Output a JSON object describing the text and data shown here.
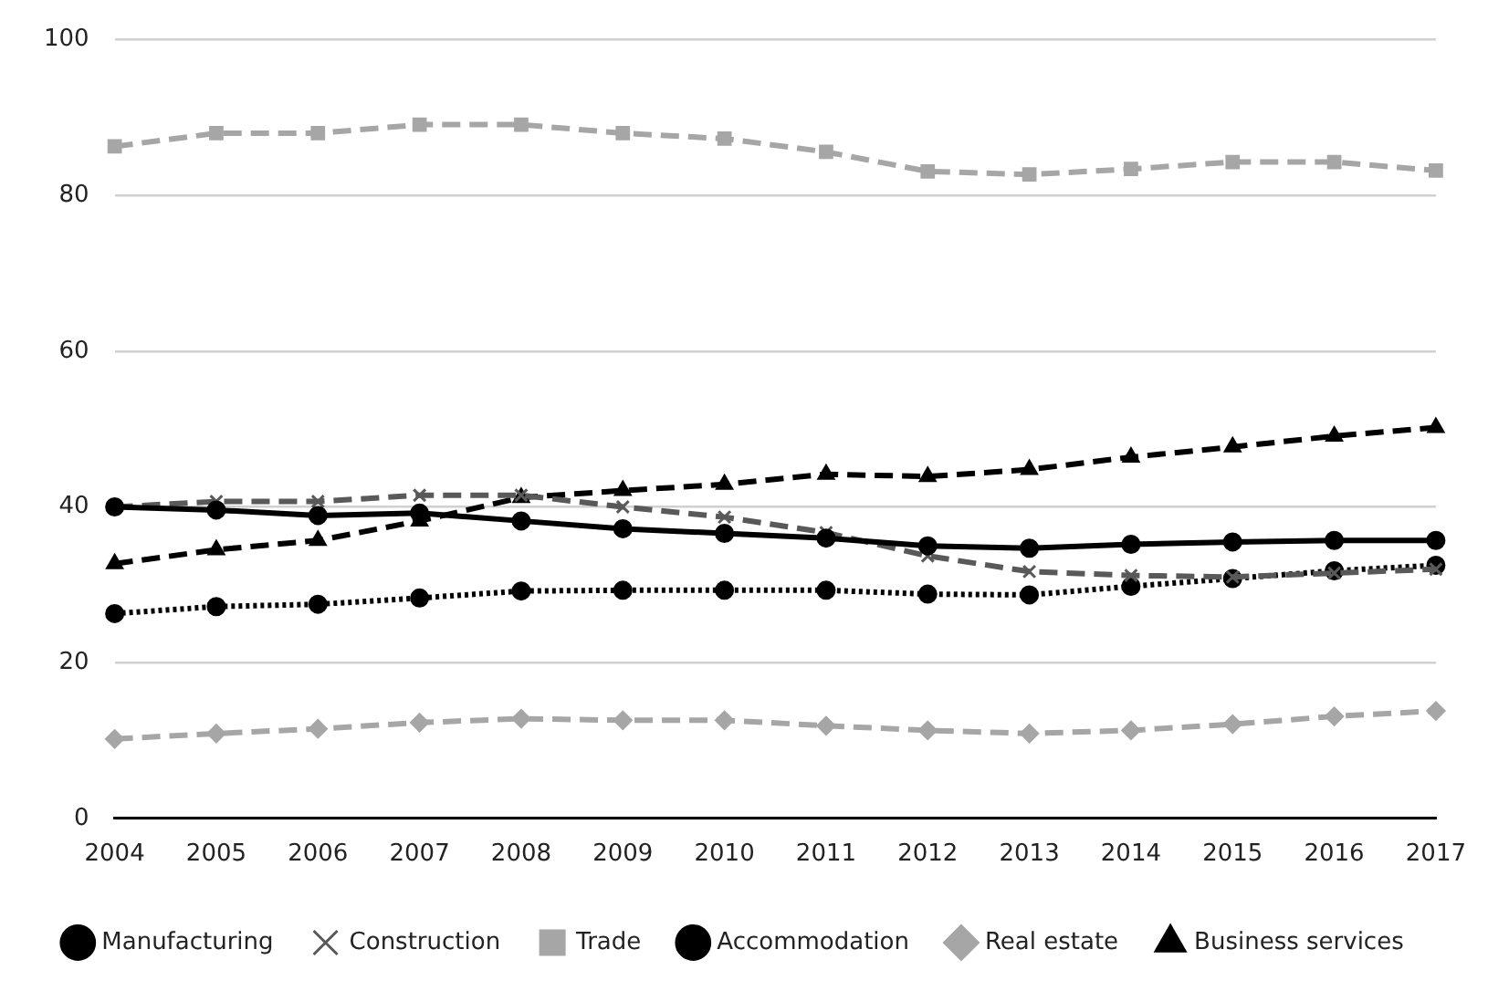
{
  "chart_data": {
    "type": "line",
    "categories": [
      "2004",
      "2005",
      "2006",
      "2007",
      "2008",
      "2009",
      "2010",
      "2011",
      "2012",
      "2013",
      "2014",
      "2015",
      "2016",
      "2017"
    ],
    "series": [
      {
        "name": "Manufacturing",
        "color": "#000000",
        "marker": "circle",
        "line_style": "solid",
        "values": [
          40,
          39.6,
          38.9,
          39.2,
          38.2,
          37.2,
          36.6,
          36.0,
          35.0,
          34.7,
          35.2,
          35.5,
          35.7,
          35.7
        ]
      },
      {
        "name": "Construction",
        "color": "#595959",
        "marker": "cross",
        "line_style": "dashed",
        "values": [
          40,
          40.7,
          40.7,
          41.5,
          41.5,
          40,
          38.7,
          36.7,
          33.7,
          31.7,
          31.2,
          31.0,
          31.5,
          32.0
        ]
      },
      {
        "name": "Trade",
        "color": "#a6a6a6",
        "marker": "square",
        "line_style": "dashed",
        "values": [
          86.3,
          88.0,
          88.0,
          89.1,
          89.1,
          88.0,
          87.3,
          85.6,
          83.1,
          82.7,
          83.4,
          84.3,
          84.3,
          83.2
        ]
      },
      {
        "name": "Accommodation",
        "color": "#000000",
        "marker": "circle",
        "line_style": "dotted",
        "values": [
          26.3,
          27.2,
          27.5,
          28.3,
          29.2,
          29.3,
          29.3,
          29.3,
          28.8,
          28.7,
          29.8,
          30.8,
          31.8,
          32.5
        ]
      },
      {
        "name": "Real estate",
        "color": "#a6a6a6",
        "marker": "diamond",
        "line_style": "dashed",
        "values": [
          10.2,
          10.9,
          11.5,
          12.3,
          12.8,
          12.6,
          12.6,
          11.9,
          11.3,
          10.9,
          11.3,
          12.1,
          13.1,
          13.8
        ]
      },
      {
        "name": "Business services",
        "color": "#000000",
        "marker": "triangle",
        "line_style": "dashed",
        "values": [
          32.7,
          34.5,
          35.7,
          38.2,
          41.2,
          42.1,
          42.9,
          44.2,
          43.9,
          44.8,
          46.4,
          47.7,
          49.1,
          50.2
        ]
      }
    ],
    "ylim": [
      0,
      100
    ],
    "yticks": [
      0,
      20,
      40,
      60,
      80,
      100
    ],
    "grid": "y",
    "legend": "bottom"
  }
}
